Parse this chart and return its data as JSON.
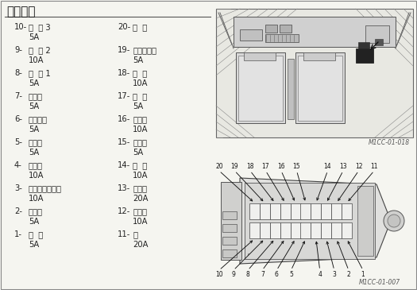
{
  "title": "保险丝盒",
  "bg_color": "#f5f5f0",
  "text_color": "#222222",
  "border_color": "#aaaaaa",
  "left_entries": [
    {
      "num": "10-",
      "name": "选  购 3",
      "amp": "5A"
    },
    {
      "num": "9-",
      "name": "选  购 2",
      "amp": "10A"
    },
    {
      "num": "8-",
      "name": "选  购 1",
      "amp": "5A"
    },
    {
      "num": "7-",
      "name": "空调机",
      "amp": "5A"
    },
    {
      "num": "6-",
      "name": "电源接通",
      "amp": "5A"
    },
    {
      "num": "5-",
      "name": "开关盒",
      "amp": "5A"
    },
    {
      "num": "4-",
      "name": "电磁阀",
      "amp": "10A"
    },
    {
      "num": "3-",
      "name": "发动机控制马达",
      "amp": "10A"
    },
    {
      "num": "2-",
      "name": "控制器",
      "amp": "5A"
    },
    {
      "num": "1-",
      "name": "后  备",
      "amp": "5A"
    }
  ],
  "right_entries": [
    {
      "num": "20-",
      "name": "备  用",
      "amp": ""
    },
    {
      "num": "19-",
      "name": "辉光继电器",
      "amp": "5A"
    },
    {
      "num": "18-",
      "name": "补  助",
      "amp": "10A"
    },
    {
      "num": "17-",
      "name": "室  灯",
      "amp": "5A"
    },
    {
      "num": "16-",
      "name": "点烟器",
      "amp": "10A"
    },
    {
      "num": "15-",
      "name": "收音机",
      "amp": "5A"
    },
    {
      "num": "14-",
      "name": "喇  叭",
      "amp": "10A"
    },
    {
      "num": "13-",
      "name": "加热器",
      "amp": "20A"
    },
    {
      "num": "12-",
      "name": "刮水器",
      "amp": "10A"
    },
    {
      "num": "11-",
      "name": "灯",
      "amp": "20A"
    }
  ],
  "img1_label": "M1CC-01-018",
  "img2_label": "M1CC-01-007",
  "top_nums": [
    "20",
    "19",
    "18",
    "17",
    "16",
    "15",
    "",
    "14",
    "13",
    "12",
    "11"
  ],
  "bot_nums": [
    "10",
    "9",
    "8",
    "7",
    "6",
    "5",
    "",
    "4",
    "3",
    "2",
    "1"
  ]
}
